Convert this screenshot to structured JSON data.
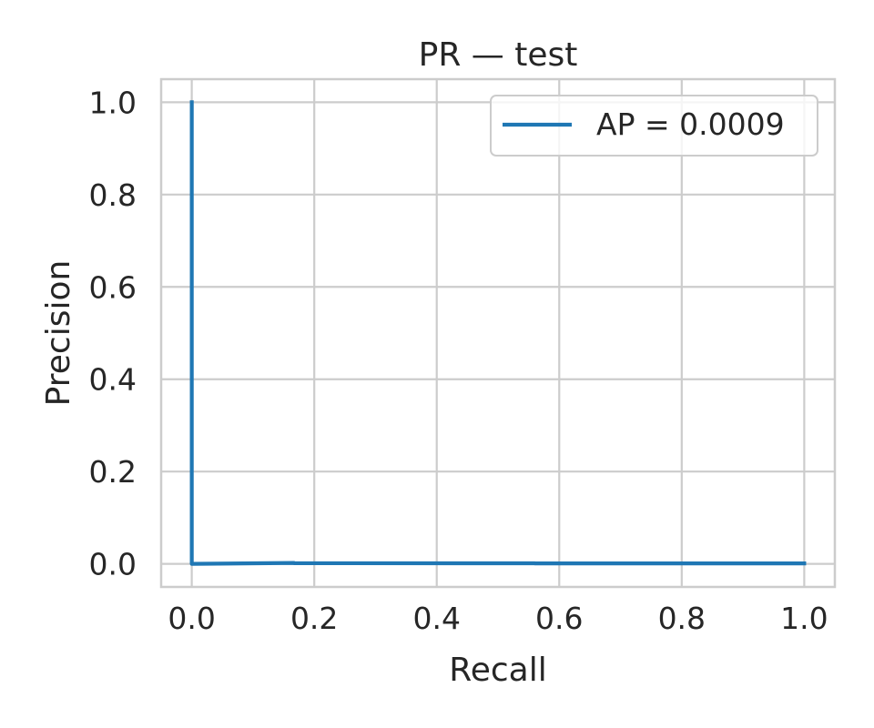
{
  "chart_data": {
    "type": "line",
    "title": "PR — test",
    "xlabel": "Recall",
    "ylabel": "Precision",
    "xlim": [
      -0.05,
      1.05
    ],
    "ylim": [
      -0.05,
      1.05
    ],
    "x_ticks": [
      0.0,
      0.2,
      0.4,
      0.6,
      0.8,
      1.0
    ],
    "y_ticks": [
      0.0,
      0.2,
      0.4,
      0.6,
      0.8,
      1.0
    ],
    "x_tick_labels": [
      "0.0",
      "0.2",
      "0.4",
      "0.6",
      "0.8",
      "1.0"
    ],
    "y_tick_labels": [
      "0.0",
      "0.2",
      "0.4",
      "0.6",
      "0.8",
      "1.0"
    ],
    "grid": true,
    "legend_position": "top-right",
    "series": [
      {
        "name": "AP = 0.0009",
        "color": "#1f77b4",
        "x": [
          0.0,
          0.0,
          0.0,
          0.167,
          0.167,
          0.56,
          0.56,
          1.0
        ],
        "y": [
          1.0,
          0.0,
          0.0,
          0.002,
          0.0015,
          0.0012,
          0.001,
          0.001
        ]
      }
    ]
  }
}
